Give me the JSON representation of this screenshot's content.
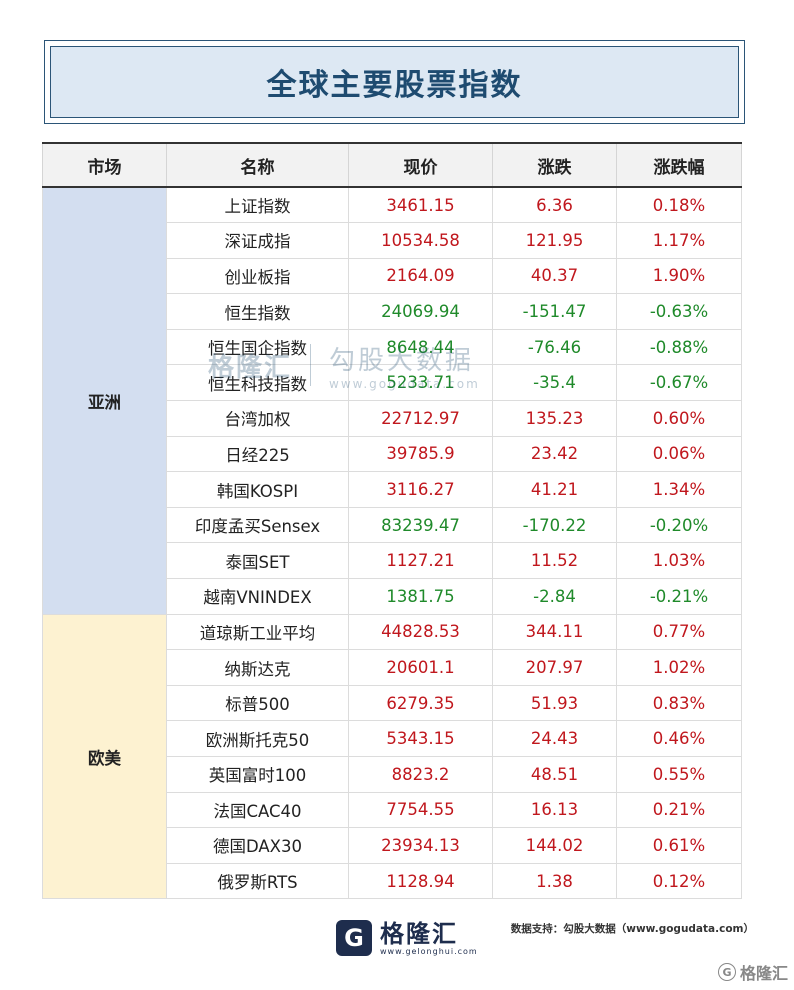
{
  "title": "全球主要股票指数",
  "headers": [
    "市场",
    "名称",
    "现价",
    "涨跌",
    "涨跌幅"
  ],
  "markets": {
    "asia": "亚洲",
    "euro": "欧美"
  },
  "rows": [
    {
      "name": "上证指数",
      "price": "3461.15",
      "change": "6.36",
      "pct": "0.18%",
      "dir": "up"
    },
    {
      "name": "深证成指",
      "price": "10534.58",
      "change": "121.95",
      "pct": "1.17%",
      "dir": "up"
    },
    {
      "name": "创业板指",
      "price": "2164.09",
      "change": "40.37",
      "pct": "1.90%",
      "dir": "up"
    },
    {
      "name": "恒生指数",
      "price": "24069.94",
      "change": "-151.47",
      "pct": "-0.63%",
      "dir": "down"
    },
    {
      "name": "恒生国企指数",
      "price": "8648.44",
      "change": "-76.46",
      "pct": "-0.88%",
      "dir": "down"
    },
    {
      "name": "恒生科技指数",
      "price": "5233.71",
      "change": "-35.4",
      "pct": "-0.67%",
      "dir": "down"
    },
    {
      "name": "台湾加权",
      "price": "22712.97",
      "change": "135.23",
      "pct": "0.60%",
      "dir": "up"
    },
    {
      "name": "日经225",
      "price": "39785.9",
      "change": "23.42",
      "pct": "0.06%",
      "dir": "up"
    },
    {
      "name": "韩国KOSPI",
      "price": "3116.27",
      "change": "41.21",
      "pct": "1.34%",
      "dir": "up"
    },
    {
      "name": "印度孟买Sensex",
      "price": "83239.47",
      "change": "-170.22",
      "pct": "-0.20%",
      "dir": "down"
    },
    {
      "name": "泰国SET",
      "price": "1127.21",
      "change": "11.52",
      "pct": "1.03%",
      "dir": "up"
    },
    {
      "name": "越南VNINDEX",
      "price": "1381.75",
      "change": "-2.84",
      "pct": "-0.21%",
      "dir": "down"
    },
    {
      "name": "道琼斯工业平均",
      "price": "44828.53",
      "change": "344.11",
      "pct": "0.77%",
      "dir": "up"
    },
    {
      "name": "纳斯达克",
      "price": "20601.1",
      "change": "207.97",
      "pct": "1.02%",
      "dir": "up"
    },
    {
      "name": "标普500",
      "price": "6279.35",
      "change": "51.93",
      "pct": "0.83%",
      "dir": "up"
    },
    {
      "name": "欧洲斯托克50",
      "price": "5343.15",
      "change": "24.43",
      "pct": "0.46%",
      "dir": "up"
    },
    {
      "name": "英国富时100",
      "price": "8823.2",
      "change": "48.51",
      "pct": "0.55%",
      "dir": "up"
    },
    {
      "name": "法国CAC40",
      "price": "7754.55",
      "change": "16.13",
      "pct": "0.21%",
      "dir": "up"
    },
    {
      "name": "德国DAX30",
      "price": "23934.13",
      "change": "144.02",
      "pct": "0.61%",
      "dir": "up"
    },
    {
      "name": "俄罗斯RTS",
      "price": "1128.94",
      "change": "1.38",
      "pct": "0.12%",
      "dir": "up"
    }
  ],
  "colors": {
    "up": "#c0171d",
    "down": "#1f8a2a",
    "asia_bg": "#d3def0",
    "euro_bg": "#fdf2d1",
    "title": "#1e4b70"
  },
  "watermark": {
    "logo": "格隆汇",
    "cn": "勾股大数据",
    "url": "www.gogudata.com"
  },
  "footer": {
    "logo_mark": "G",
    "logo_cn": "格隆汇",
    "logo_url": "www.gelonghui.com",
    "support": "数据支持：勾股大数据（www.gogudata.com）",
    "badge": "格隆汇"
  }
}
